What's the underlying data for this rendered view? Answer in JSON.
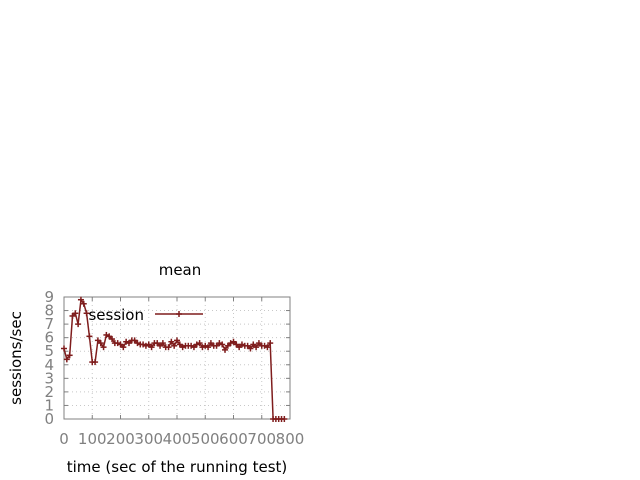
{
  "chart_data": {
    "type": "line",
    "title": "mean",
    "xlabel": "time (sec of the running test)",
    "ylabel": "sessions/sec",
    "xlim": [
      0,
      800
    ],
    "ylim": [
      0,
      9
    ],
    "xticks": [
      0,
      100,
      200,
      300,
      400,
      500,
      600,
      700,
      800
    ],
    "yticks": [
      0,
      1,
      2,
      3,
      4,
      5,
      6,
      7,
      8,
      9
    ],
    "grid": true,
    "legend_position": "top-left",
    "series": [
      {
        "name": "session",
        "color": "#7f1d1d",
        "marker": "plus",
        "x": [
          0,
          10,
          20,
          30,
          40,
          50,
          60,
          70,
          80,
          90,
          100,
          110,
          120,
          130,
          140,
          150,
          160,
          170,
          180,
          190,
          200,
          210,
          220,
          230,
          240,
          250,
          260,
          270,
          280,
          290,
          300,
          310,
          320,
          330,
          340,
          350,
          360,
          370,
          380,
          390,
          400,
          410,
          420,
          430,
          440,
          450,
          460,
          470,
          480,
          490,
          500,
          510,
          520,
          530,
          540,
          550,
          560,
          570,
          580,
          590,
          600,
          610,
          620,
          630,
          640,
          650,
          660,
          670,
          680,
          690,
          700,
          710,
          720,
          730,
          740,
          750,
          760,
          770,
          780
        ],
        "y": [
          5.2,
          4.4,
          4.7,
          7.6,
          7.8,
          7.0,
          8.8,
          8.5,
          7.8,
          6.1,
          4.2,
          4.2,
          5.8,
          5.6,
          5.3,
          6.2,
          6.1,
          5.9,
          5.6,
          5.6,
          5.5,
          5.3,
          5.7,
          5.6,
          5.8,
          5.8,
          5.6,
          5.5,
          5.5,
          5.4,
          5.5,
          5.3,
          5.6,
          5.6,
          5.4,
          5.6,
          5.3,
          5.3,
          5.7,
          5.4,
          5.8,
          5.5,
          5.3,
          5.4,
          5.4,
          5.4,
          5.3,
          5.5,
          5.6,
          5.3,
          5.4,
          5.3,
          5.6,
          5.4,
          5.4,
          5.6,
          5.5,
          5.1,
          5.4,
          5.6,
          5.7,
          5.5,
          5.3,
          5.5,
          5.4,
          5.4,
          5.2,
          5.5,
          5.3,
          5.6,
          5.4,
          5.4,
          5.3,
          5.6,
          0,
          0,
          0,
          0,
          0
        ]
      }
    ]
  }
}
